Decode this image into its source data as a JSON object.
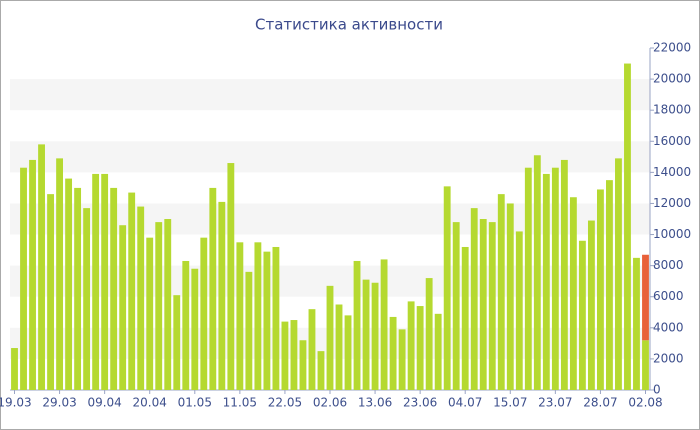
{
  "chart_data": {
    "type": "bar",
    "title": "Статистика активности",
    "categories": [
      "19.03",
      null,
      null,
      null,
      null,
      "29.03",
      null,
      null,
      null,
      null,
      "09.04",
      null,
      null,
      null,
      null,
      "20.04",
      null,
      null,
      null,
      null,
      "01.05",
      null,
      null,
      null,
      null,
      "11.05",
      null,
      null,
      null,
      null,
      "22.05",
      null,
      null,
      null,
      null,
      "02.06",
      null,
      null,
      null,
      null,
      "13.06",
      null,
      null,
      null,
      null,
      "23.06",
      null,
      null,
      null,
      null,
      "04.07",
      null,
      null,
      null,
      null,
      "15.07",
      null,
      null,
      null,
      null,
      "23.07",
      null,
      null,
      null,
      null,
      "28.07",
      null,
      null,
      null,
      null,
      "02.08"
    ],
    "series": [
      {
        "color": "#b5d930",
        "values": [
          2700,
          14300,
          14800,
          15800,
          12600,
          14900,
          13600,
          13000,
          11700,
          13900,
          13900,
          13000,
          10600,
          12700,
          11800,
          9800,
          10800,
          11000,
          6100,
          8300,
          7800,
          9800,
          13000,
          12100,
          14600,
          9500,
          7600,
          9500,
          8900,
          9200,
          4400,
          4500,
          3200,
          5200,
          2500,
          6700,
          5500,
          4800,
          8300,
          7100,
          6900,
          8400,
          4700,
          3900,
          5700,
          5400,
          7200,
          4900,
          13100,
          10800,
          9200,
          11700,
          11000,
          10800,
          12600,
          12000,
          10200,
          14300,
          15100,
          13900,
          14300,
          14800,
          12400,
          9600,
          10900,
          12900,
          13500,
          14900,
          21000,
          8500,
          3200
        ]
      },
      {
        "color": "#e8613a",
        "values": [
          null,
          null,
          null,
          null,
          null,
          null,
          null,
          null,
          null,
          null,
          null,
          null,
          null,
          null,
          null,
          null,
          null,
          null,
          null,
          null,
          null,
          null,
          null,
          null,
          null,
          null,
          null,
          null,
          null,
          null,
          null,
          null,
          null,
          null,
          null,
          null,
          null,
          null,
          null,
          null,
          null,
          null,
          null,
          null,
          null,
          null,
          null,
          null,
          null,
          null,
          null,
          null,
          null,
          null,
          null,
          null,
          null,
          null,
          null,
          null,
          null,
          null,
          null,
          null,
          null,
          null,
          null,
          null,
          null,
          null,
          5500
        ]
      }
    ],
    "ylim": [
      0,
      22000
    ],
    "yticks": [
      0,
      2000,
      4000,
      6000,
      8000,
      10000,
      12000,
      14000,
      16000,
      18000,
      20000,
      22000
    ],
    "grid": "bands",
    "stacked": true
  }
}
